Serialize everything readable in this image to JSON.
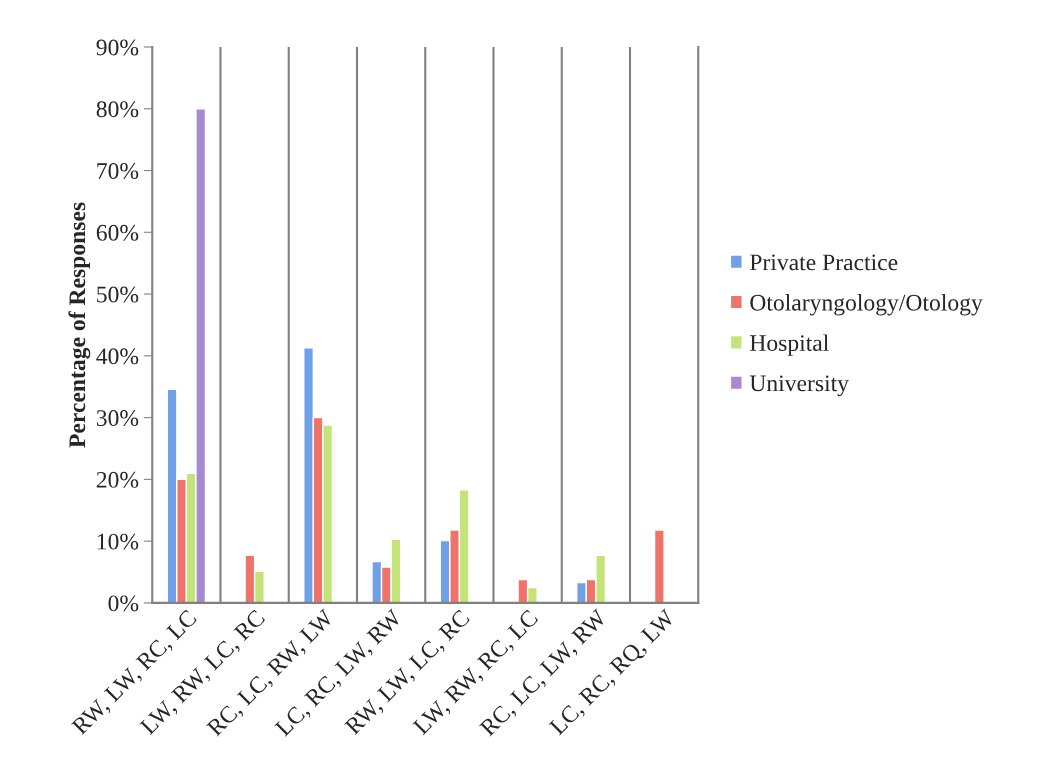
{
  "chart_data": {
    "type": "bar",
    "ylabel": "Percentage of Responses",
    "categories": [
      "RW, LW, RC, LC",
      "LW, RW, LC, RC",
      "RC, LC, RW, LW",
      "LC, RC, LW, RW",
      "RW, LW, LC, RC",
      "LW, RW, RC, LC",
      "RC, LC, LW, RW",
      "LC, RC, RQ, LW"
    ],
    "series": [
      {
        "name": "Private Practice",
        "color": "#6fa0e8",
        "values": [
          34.6,
          null,
          41.3,
          6.7,
          10.1,
          null,
          3.3,
          null
        ]
      },
      {
        "name": "Otolaryngology/Otology",
        "color": "#f0736a",
        "values": [
          20,
          7.7,
          30,
          5.8,
          11.8,
          3.8,
          3.8,
          11.8
        ]
      },
      {
        "name": "Hospital",
        "color": "#c4e47a",
        "values": [
          21,
          5.1,
          28.8,
          10.3,
          18.3,
          2.5,
          7.7,
          null
        ]
      },
      {
        "name": "University",
        "color": "#a88ad0",
        "values": [
          80,
          null,
          null,
          null,
          null,
          null,
          null,
          null
        ]
      }
    ],
    "ylim": [
      0,
      90
    ],
    "yticks": [
      {
        "value": 0,
        "label": "0%"
      },
      {
        "value": 10,
        "label": "10%"
      },
      {
        "value": 20,
        "label": "20%"
      },
      {
        "value": 30,
        "label": "30%"
      },
      {
        "value": 40,
        "label": "40%"
      },
      {
        "value": 50,
        "label": "50%"
      },
      {
        "value": 60,
        "label": "60%"
      },
      {
        "value": 70,
        "label": "70%"
      },
      {
        "value": 80,
        "label": "80%"
      },
      {
        "value": 90,
        "label": "90%"
      }
    ],
    "grid": "x",
    "legend": "right"
  }
}
